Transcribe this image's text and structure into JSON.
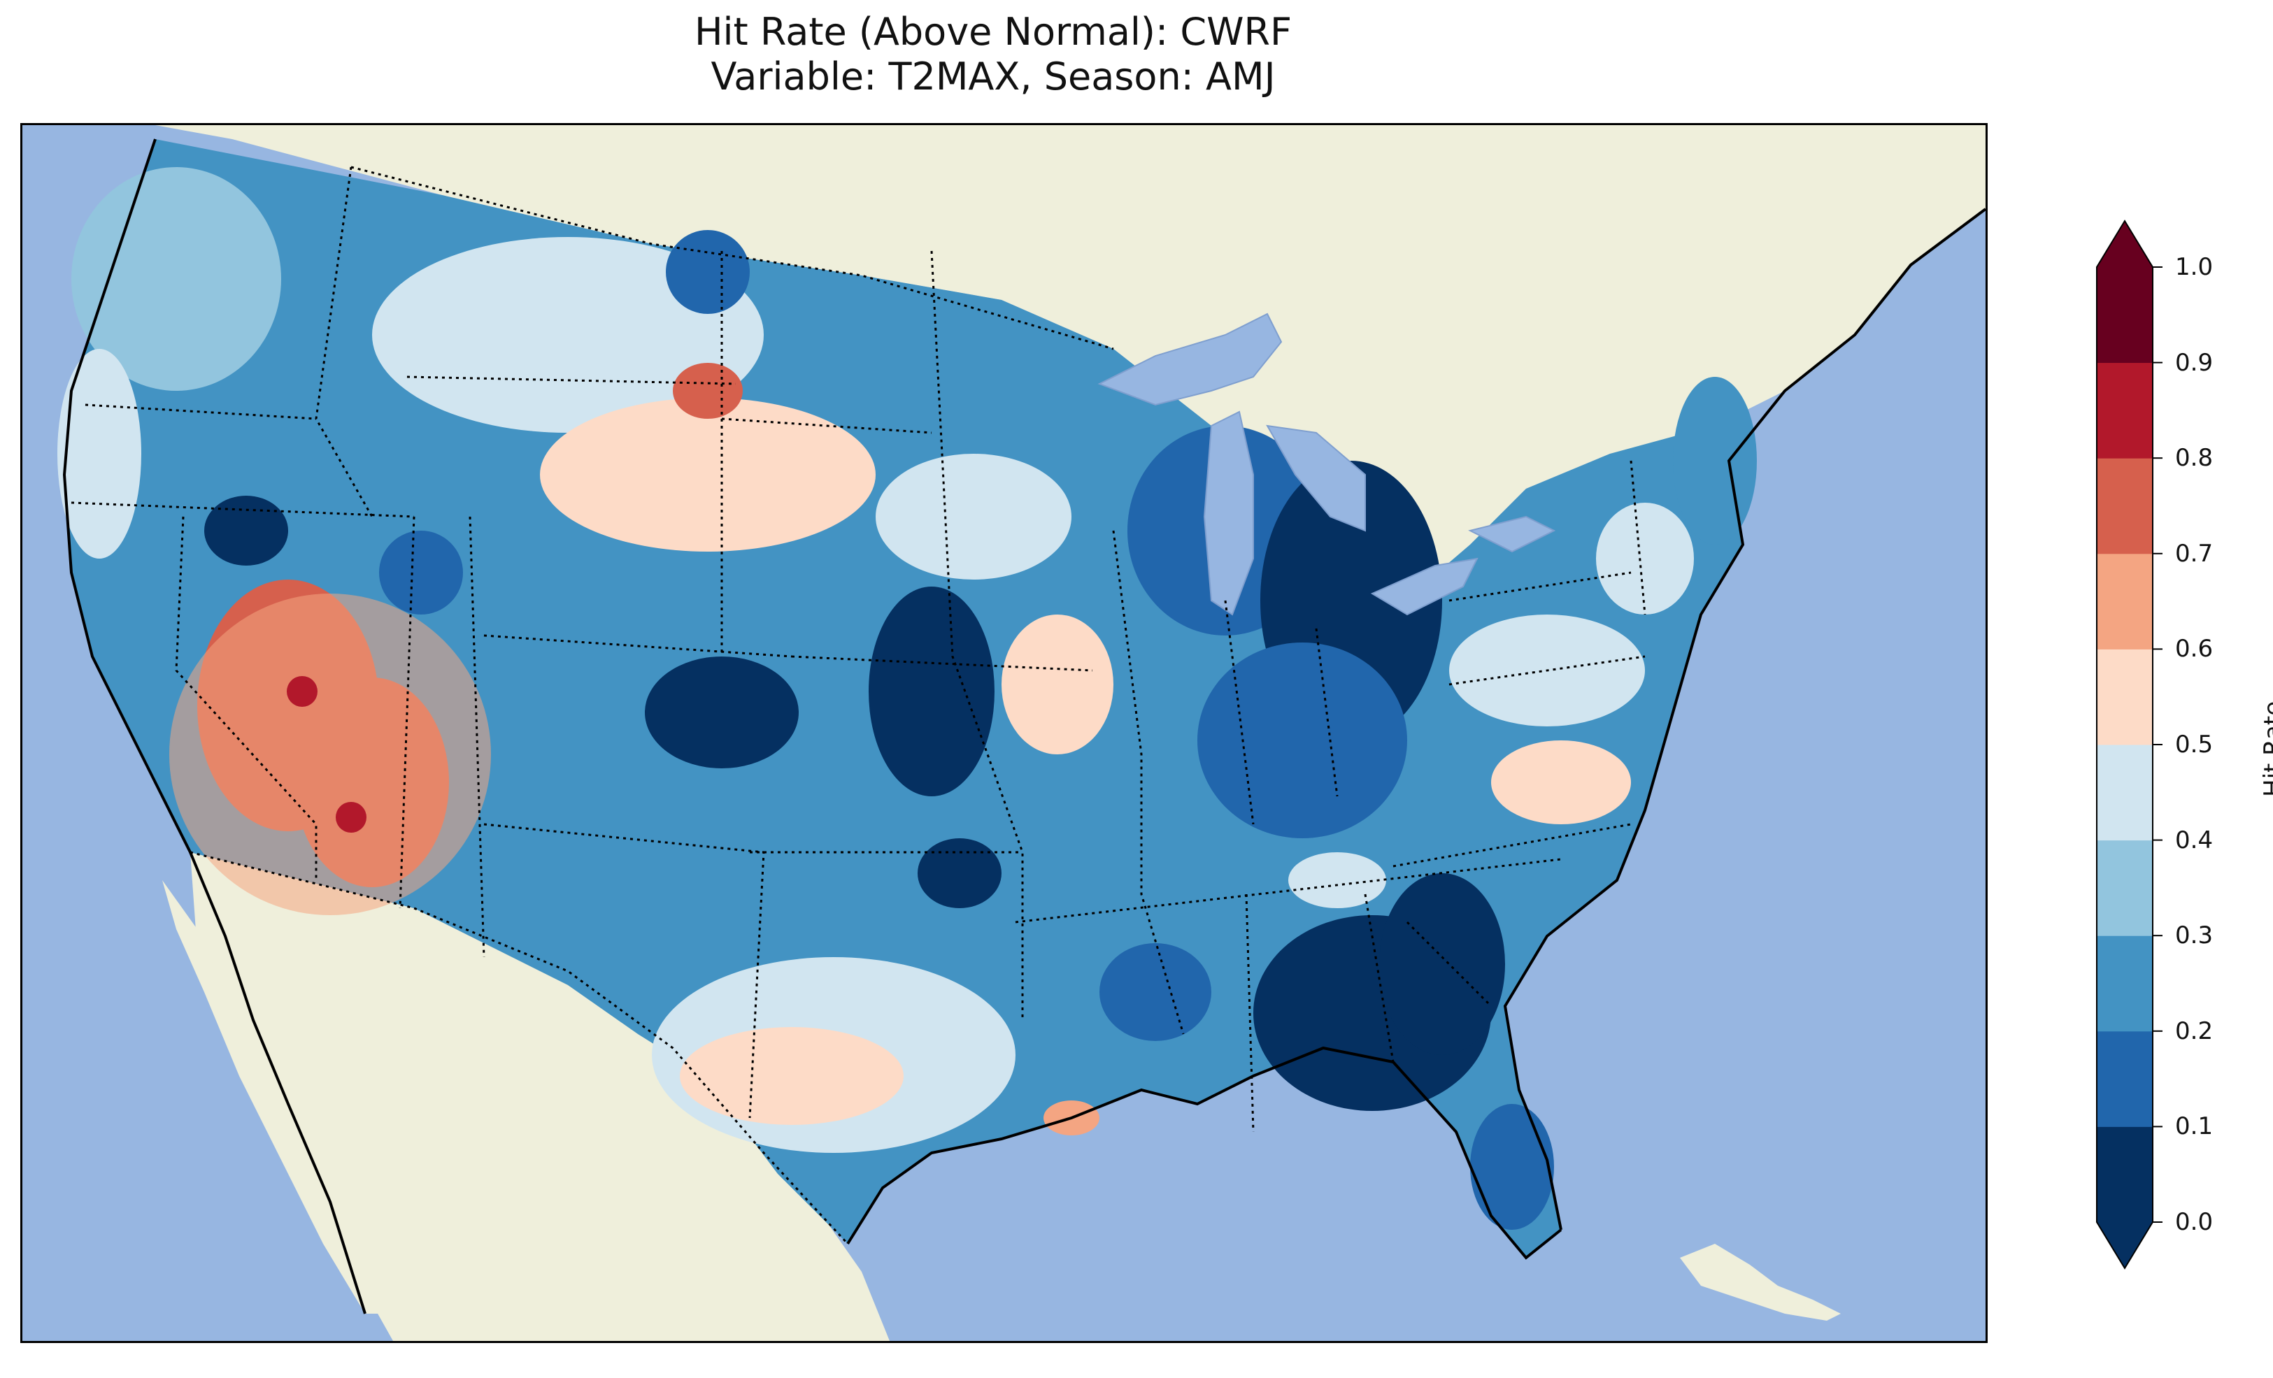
{
  "title": {
    "line1": "Hit Rate (Above Normal): CWRF",
    "line2": "Variable: T2MAX, Season: AMJ"
  },
  "colorbar": {
    "label": "Hit Rate",
    "ticks": [
      "0.0",
      "0.1",
      "0.2",
      "0.3",
      "0.4",
      "0.5",
      "0.6",
      "0.7",
      "0.8",
      "0.9",
      "1.0"
    ],
    "colors": [
      "#053061",
      "#2166ac",
      "#4393c3",
      "#92c5de",
      "#d1e5f0",
      "#fddbc7",
      "#f4a582",
      "#d6604d",
      "#b2182b",
      "#67001f"
    ],
    "extend": "both"
  },
  "map": {
    "ocean_color": "#97b6e1",
    "land_color": "#efefdb",
    "lake_color": "#97b6e1"
  }
}
